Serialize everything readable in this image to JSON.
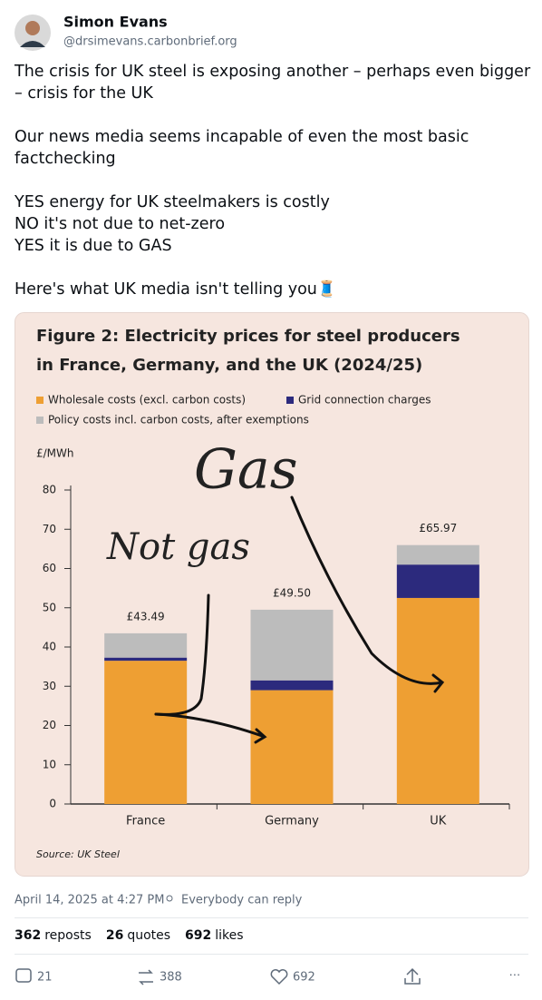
{
  "author": {
    "name": "Simon Evans",
    "handle": "@drsimevans.carbonbrief.org"
  },
  "post": {
    "lines": [
      [
        "The crisis for UK steel is exposing another – perhaps even bigger",
        "– crisis for the UK"
      ],
      [
        "Our news media seems incapable of even the most basic",
        "factchecking"
      ],
      [
        "YES energy for UK steelmakers is costly",
        "NO it's not due to net-zero",
        "YES it is due to GAS"
      ],
      [
        "Here's what UK media isn't telling you🧵"
      ]
    ]
  },
  "chart_data": {
    "type": "stacked-bar",
    "title": [
      "Figure 2: Electricity prices for steel producers",
      "in France, Germany, and the UK (2024/25)"
    ],
    "y_label": "£/MWh",
    "categories": [
      "France",
      "Germany",
      "UK"
    ],
    "series": [
      {
        "name": "Wholesale costs (excl. carbon costs)",
        "color": "#ee9f33",
        "values": [
          36.5,
          29,
          52.5
        ]
      },
      {
        "name": "Grid connection charges",
        "color": "#2c2a7d",
        "values": [
          0.8,
          2.5,
          8.5
        ]
      },
      {
        "name": "Policy costs incl. carbon costs, after exemptions",
        "color": "#bcbcbc",
        "values": [
          6.19,
          18,
          4.97
        ]
      }
    ],
    "totals": [
      43.49,
      49.5,
      65.97
    ],
    "total_labels": [
      "£43.49",
      "£49.50",
      "£65.97"
    ],
    "ylim": [
      0,
      80
    ],
    "yticks": [
      0,
      10,
      20,
      30,
      40,
      50,
      60,
      70,
      80
    ],
    "annotations": [
      "Gas",
      "Not gas"
    ],
    "source": "Source: UK Steel"
  },
  "meta": {
    "timestamp": "April 14, 2025 at 4:27 PM",
    "reply_setting": "Everybody can reply"
  },
  "stats": [
    {
      "count": 362,
      "label": "reposts"
    },
    {
      "count": 26,
      "label": "quotes"
    },
    {
      "count": 692,
      "label": "likes"
    }
  ],
  "actions": {
    "replies": 21,
    "reposts": 388,
    "likes": 692
  }
}
